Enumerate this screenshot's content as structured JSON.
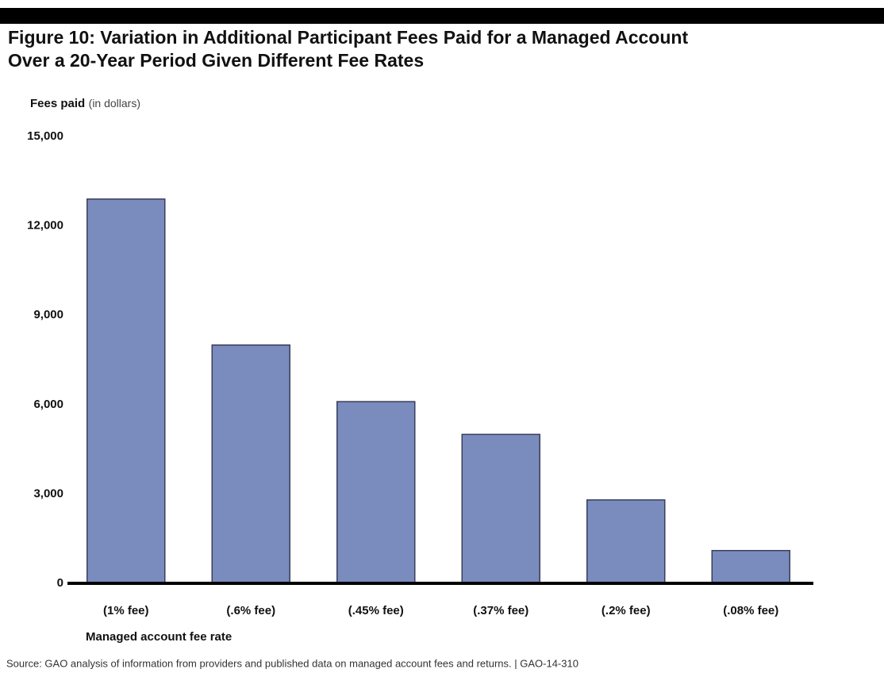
{
  "chart_data": {
    "type": "bar",
    "title_lines": [
      "Figure 10: Variation in Additional Participant Fees Paid for a Managed Account",
      "Over a 20-Year Period Given Different Fee Rates"
    ],
    "y_label": "Fees paid",
    "y_label_unit": "(in dollars)",
    "x_label": "Managed account fee rate",
    "categories": [
      "(1% fee)",
      "(.6% fee)",
      "(.45% fee)",
      "(.37% fee)",
      "(.2% fee)",
      "(.08% fee)"
    ],
    "values": [
      12900,
      8000,
      6100,
      5000,
      2800,
      1100
    ],
    "color": "#7a8bbd",
    "ylim": [
      0,
      15000
    ],
    "yticks": [
      0,
      {
        "value": 3000,
        "label": "3,000"
      },
      {
        "value": 6000,
        "label": "6,000"
      },
      {
        "value": 9000,
        "label": "9,000"
      },
      {
        "value": 12000,
        "label": "12,000"
      },
      {
        "value": 15000,
        "label": "15,000"
      }
    ],
    "grid": false,
    "source": "Source: GAO analysis of information from providers and published data on managed account fees and returns.  |  GAO-14-310"
  }
}
